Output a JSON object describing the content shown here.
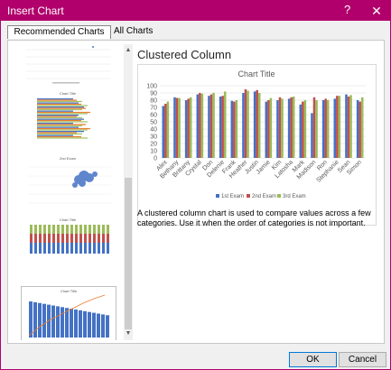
{
  "window": {
    "title": "Insert Chart",
    "help_glyph": "?",
    "close_glyph": "✕",
    "accent_color": "#b1006b"
  },
  "tabs": [
    {
      "label": "Recommended Charts",
      "selected": true
    },
    {
      "label": "All Charts",
      "selected": false
    }
  ],
  "preview": {
    "chart_type_name": "Clustered Column",
    "description": "A clustered column chart is used to compare values across a few categories. Use it when the order of categories is not important."
  },
  "thumbnails": [
    {
      "name": "scatter-thumbnail"
    },
    {
      "name": "clustered-bar-thumbnail",
      "title": "Chart Title"
    },
    {
      "name": "bubble-thumbnail",
      "title": "2nd Exam"
    },
    {
      "name": "stacked-column-thumbnail",
      "title": "Chart Title"
    },
    {
      "name": "pareto-thumbnail",
      "title": "Chart Title"
    }
  ],
  "buttons": {
    "ok": "OK",
    "cancel": "Cancel"
  },
  "chart_data": {
    "type": "bar",
    "title": "Chart Title",
    "categories": [
      "Alex",
      "Bethany",
      "Brittany",
      "Crystal",
      "Don",
      "Delenie",
      "Frank",
      "Heather",
      "Justin",
      "Jamie",
      "Kim",
      "Latosha",
      "Mark",
      "Madison",
      "Ron",
      "Stephanie",
      "Sean",
      "Simon"
    ],
    "series": [
      {
        "name": "1st Exam",
        "color": "#4472c4",
        "values": [
          72,
          84,
          80,
          88,
          86,
          85,
          79,
          90,
          92,
          78,
          80,
          82,
          74,
          62,
          80,
          82,
          88,
          80
        ]
      },
      {
        "name": "2nd Exam",
        "color": "#c0504d",
        "values": [
          75,
          83,
          82,
          90,
          88,
          86,
          78,
          95,
          94,
          80,
          84,
          84,
          78,
          84,
          82,
          86,
          85,
          78
        ]
      },
      {
        "name": "3rd Exam",
        "color": "#9bbb59",
        "values": [
          78,
          83,
          84,
          89,
          90,
          92,
          80,
          93,
          90,
          83,
          82,
          85,
          80,
          80,
          80,
          86,
          87,
          84
        ]
      }
    ],
    "ylim": [
      0,
      100
    ],
    "yticks": [
      0,
      10,
      20,
      30,
      40,
      50,
      60,
      70,
      80,
      90,
      100
    ],
    "grid": true,
    "legend_position": "bottom"
  }
}
